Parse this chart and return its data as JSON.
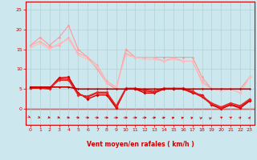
{
  "xlabel": "Vent moyen/en rafales ( km/h )",
  "bg_color": "#cce8ee",
  "grid_color": "#aacccc",
  "x_ticks": [
    0,
    1,
    2,
    3,
    4,
    5,
    6,
    7,
    8,
    9,
    10,
    11,
    12,
    13,
    14,
    15,
    16,
    17,
    18,
    19,
    20,
    21,
    22,
    23
  ],
  "y_ticks": [
    0,
    5,
    10,
    15,
    20,
    25
  ],
  "ylim": [
    -4,
    27
  ],
  "xlim": [
    -0.5,
    23.5
  ],
  "lines_light": [
    {
      "x": [
        0,
        1,
        2,
        3,
        4,
        5,
        6,
        7,
        8,
        9,
        10,
        11,
        12,
        13,
        14,
        15,
        16,
        17,
        18,
        19,
        20,
        21,
        22,
        23
      ],
      "y": [
        16,
        18,
        16,
        18,
        21,
        15,
        13,
        10,
        6.5,
        5,
        15,
        13,
        13,
        13,
        13,
        13,
        13,
        13,
        8,
        5,
        5,
        5,
        5,
        8
      ],
      "color": "#ff9999",
      "lw": 0.8,
      "marker": "D",
      "ms": 1.8
    },
    {
      "x": [
        0,
        1,
        2,
        3,
        4,
        5,
        6,
        7,
        8,
        9,
        10,
        11,
        12,
        13,
        14,
        15,
        16,
        17,
        18,
        19,
        20,
        21,
        22,
        23
      ],
      "y": [
        16,
        17,
        15.5,
        16,
        18,
        14,
        13,
        11,
        7,
        5.5,
        14,
        13,
        13,
        13,
        12,
        13,
        12,
        12,
        7,
        5,
        5,
        5,
        4,
        8
      ],
      "color": "#ffaaaa",
      "lw": 0.8,
      "marker": "D",
      "ms": 1.8
    },
    {
      "x": [
        0,
        1,
        2,
        3,
        4,
        5,
        6,
        7,
        8,
        9,
        10,
        11,
        12,
        13,
        14,
        15,
        16,
        17,
        18,
        19,
        20,
        21,
        22,
        23
      ],
      "y": [
        15.5,
        16.5,
        15,
        16.5,
        17.5,
        13.5,
        12.5,
        10.5,
        6.5,
        5.5,
        13.5,
        13,
        12.5,
        12.5,
        12,
        12.5,
        12,
        12,
        6.5,
        5,
        4.5,
        5,
        4,
        8
      ],
      "color": "#ffbbbb",
      "lw": 0.8,
      "marker": "D",
      "ms": 1.5
    }
  ],
  "lines_dark": [
    {
      "x": [
        0,
        1,
        2,
        3,
        4,
        5,
        6,
        7,
        8,
        9,
        10,
        11,
        12,
        13,
        14,
        15,
        16,
        17,
        18,
        19,
        20,
        21,
        22,
        23
      ],
      "y": [
        5.3,
        5.3,
        5.2,
        7.8,
        8.0,
        4.0,
        2.5,
        3.5,
        3.5,
        0.2,
        5,
        5,
        4,
        4,
        5,
        5,
        5,
        4,
        3.5,
        1,
        0,
        1,
        0.2,
        2
      ],
      "color": "#cc0000",
      "lw": 1.0,
      "marker": "D",
      "ms": 2.0
    },
    {
      "x": [
        0,
        1,
        2,
        3,
        4,
        5,
        6,
        7,
        8,
        9,
        10,
        11,
        12,
        13,
        14,
        15,
        16,
        17,
        18,
        19,
        20,
        21,
        22,
        23
      ],
      "y": [
        5.2,
        5.2,
        5.0,
        7.5,
        7.5,
        3.8,
        3.0,
        4.0,
        4.0,
        0.5,
        5,
        5,
        4.5,
        4.2,
        5,
        5,
        5,
        4.2,
        3,
        1.2,
        0.2,
        1.2,
        0.5,
        2.2
      ],
      "color": "#dd1111",
      "lw": 1.0,
      "marker": "D",
      "ms": 2.0
    },
    {
      "x": [
        0,
        1,
        2,
        3,
        4,
        5,
        6,
        7,
        8,
        9,
        10,
        11,
        12,
        13,
        14,
        15,
        16,
        17,
        18,
        19,
        20,
        21,
        22,
        23
      ],
      "y": [
        5.4,
        5.4,
        5.3,
        7.2,
        7.2,
        3.5,
        3.2,
        4.2,
        4.2,
        0.8,
        5.2,
        5.2,
        4.8,
        4.5,
        5.2,
        5.2,
        5.2,
        4.5,
        3.2,
        1.5,
        0.5,
        1.5,
        0.8,
        2.5
      ],
      "color": "#ee2222",
      "lw": 1.0,
      "marker": "D",
      "ms": 2.0
    },
    {
      "x": [
        0,
        1,
        2,
        3,
        4,
        5,
        6,
        7,
        8,
        9,
        10,
        11,
        12,
        13,
        14,
        15,
        16,
        17,
        18,
        19,
        20,
        21,
        22,
        23
      ],
      "y": [
        5.5,
        5.5,
        5.5,
        5.5,
        5.5,
        5,
        5,
        5,
        5,
        5,
        5,
        5,
        5,
        5,
        5,
        5,
        5,
        5,
        5,
        5,
        5,
        5,
        5,
        5
      ],
      "color": "#bb0000",
      "lw": 1.2,
      "marker": "D",
      "ms": 1.5
    }
  ],
  "arrow_angles": [
    30,
    40,
    50,
    55,
    60,
    65,
    70,
    75,
    80,
    90,
    90,
    95,
    100,
    110,
    115,
    125,
    130,
    135,
    145,
    150,
    155,
    160,
    165,
    170
  ]
}
